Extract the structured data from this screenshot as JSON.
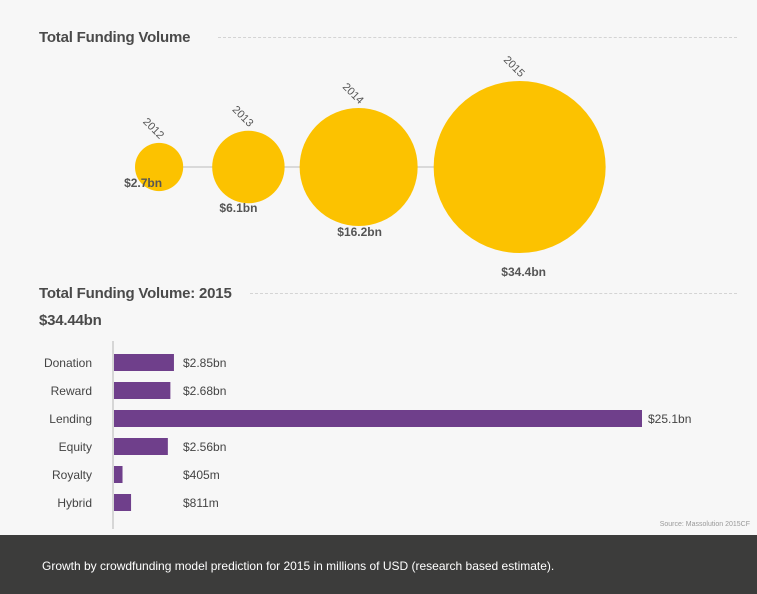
{
  "chart_data": [
    {
      "type": "bubble",
      "title": "Total Funding Volume",
      "categories": [
        "2012",
        "2013",
        "2014",
        "2015"
      ],
      "values": [
        2.7,
        6.1,
        16.2,
        34.4
      ],
      "value_labels": [
        "$2.7bn",
        "$6.1bn",
        "$16.2bn",
        "$34.4bn"
      ],
      "unit": "bn USD",
      "color": "#fcc200"
    },
    {
      "type": "bar",
      "orientation": "horizontal",
      "title": "Total Funding Volume: 2015",
      "subtitle": "$34.44bn",
      "categories": [
        "Donation",
        "Reward",
        "Lending",
        "Equity",
        "Royalty",
        "Hybrid"
      ],
      "values": [
        2.85,
        2.68,
        25.1,
        2.56,
        0.405,
        0.811
      ],
      "value_labels": [
        "$2.85bn",
        "$2.68bn",
        "$25.1bn",
        "$2.56bn",
        "$405m",
        "$811m"
      ],
      "unit": "bn USD",
      "color": "#6f3f8b",
      "grid": false
    }
  ],
  "source": "Source: Massolution 2015CF",
  "caption": "Growth by crowdfunding model prediction for 2015 in millions of USD (research based estimate)."
}
